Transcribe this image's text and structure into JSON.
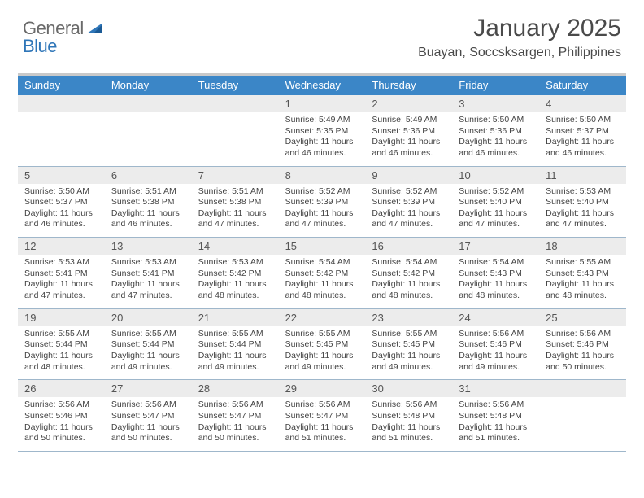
{
  "logo": {
    "word1": "General",
    "word2": "Blue"
  },
  "title": "January 2025",
  "location": "Buayan, Soccsksargen, Philippines",
  "colors": {
    "header_bg": "#3b86c7",
    "header_text": "#ffffff",
    "daynum_bg": "#ececec",
    "week_divider": "#9fb7cb",
    "top_rule": "#c9c9c9",
    "body_text": "#444444",
    "logo_gray": "#6a6a6a",
    "logo_blue": "#2f76b8"
  },
  "day_headers": [
    "Sunday",
    "Monday",
    "Tuesday",
    "Wednesday",
    "Thursday",
    "Friday",
    "Saturday"
  ],
  "weeks": [
    [
      null,
      null,
      null,
      {
        "n": "1",
        "sunrise": "5:49 AM",
        "sunset": "5:35 PM",
        "daylight": "11 hours and 46 minutes."
      },
      {
        "n": "2",
        "sunrise": "5:49 AM",
        "sunset": "5:36 PM",
        "daylight": "11 hours and 46 minutes."
      },
      {
        "n": "3",
        "sunrise": "5:50 AM",
        "sunset": "5:36 PM",
        "daylight": "11 hours and 46 minutes."
      },
      {
        "n": "4",
        "sunrise": "5:50 AM",
        "sunset": "5:37 PM",
        "daylight": "11 hours and 46 minutes."
      }
    ],
    [
      {
        "n": "5",
        "sunrise": "5:50 AM",
        "sunset": "5:37 PM",
        "daylight": "11 hours and 46 minutes."
      },
      {
        "n": "6",
        "sunrise": "5:51 AM",
        "sunset": "5:38 PM",
        "daylight": "11 hours and 46 minutes."
      },
      {
        "n": "7",
        "sunrise": "5:51 AM",
        "sunset": "5:38 PM",
        "daylight": "11 hours and 47 minutes."
      },
      {
        "n": "8",
        "sunrise": "5:52 AM",
        "sunset": "5:39 PM",
        "daylight": "11 hours and 47 minutes."
      },
      {
        "n": "9",
        "sunrise": "5:52 AM",
        "sunset": "5:39 PM",
        "daylight": "11 hours and 47 minutes."
      },
      {
        "n": "10",
        "sunrise": "5:52 AM",
        "sunset": "5:40 PM",
        "daylight": "11 hours and 47 minutes."
      },
      {
        "n": "11",
        "sunrise": "5:53 AM",
        "sunset": "5:40 PM",
        "daylight": "11 hours and 47 minutes."
      }
    ],
    [
      {
        "n": "12",
        "sunrise": "5:53 AM",
        "sunset": "5:41 PM",
        "daylight": "11 hours and 47 minutes."
      },
      {
        "n": "13",
        "sunrise": "5:53 AM",
        "sunset": "5:41 PM",
        "daylight": "11 hours and 47 minutes."
      },
      {
        "n": "14",
        "sunrise": "5:53 AM",
        "sunset": "5:42 PM",
        "daylight": "11 hours and 48 minutes."
      },
      {
        "n": "15",
        "sunrise": "5:54 AM",
        "sunset": "5:42 PM",
        "daylight": "11 hours and 48 minutes."
      },
      {
        "n": "16",
        "sunrise": "5:54 AM",
        "sunset": "5:42 PM",
        "daylight": "11 hours and 48 minutes."
      },
      {
        "n": "17",
        "sunrise": "5:54 AM",
        "sunset": "5:43 PM",
        "daylight": "11 hours and 48 minutes."
      },
      {
        "n": "18",
        "sunrise": "5:55 AM",
        "sunset": "5:43 PM",
        "daylight": "11 hours and 48 minutes."
      }
    ],
    [
      {
        "n": "19",
        "sunrise": "5:55 AM",
        "sunset": "5:44 PM",
        "daylight": "11 hours and 48 minutes."
      },
      {
        "n": "20",
        "sunrise": "5:55 AM",
        "sunset": "5:44 PM",
        "daylight": "11 hours and 49 minutes."
      },
      {
        "n": "21",
        "sunrise": "5:55 AM",
        "sunset": "5:44 PM",
        "daylight": "11 hours and 49 minutes."
      },
      {
        "n": "22",
        "sunrise": "5:55 AM",
        "sunset": "5:45 PM",
        "daylight": "11 hours and 49 minutes."
      },
      {
        "n": "23",
        "sunrise": "5:55 AM",
        "sunset": "5:45 PM",
        "daylight": "11 hours and 49 minutes."
      },
      {
        "n": "24",
        "sunrise": "5:56 AM",
        "sunset": "5:46 PM",
        "daylight": "11 hours and 49 minutes."
      },
      {
        "n": "25",
        "sunrise": "5:56 AM",
        "sunset": "5:46 PM",
        "daylight": "11 hours and 50 minutes."
      }
    ],
    [
      {
        "n": "26",
        "sunrise": "5:56 AM",
        "sunset": "5:46 PM",
        "daylight": "11 hours and 50 minutes."
      },
      {
        "n": "27",
        "sunrise": "5:56 AM",
        "sunset": "5:47 PM",
        "daylight": "11 hours and 50 minutes."
      },
      {
        "n": "28",
        "sunrise": "5:56 AM",
        "sunset": "5:47 PM",
        "daylight": "11 hours and 50 minutes."
      },
      {
        "n": "29",
        "sunrise": "5:56 AM",
        "sunset": "5:47 PM",
        "daylight": "11 hours and 51 minutes."
      },
      {
        "n": "30",
        "sunrise": "5:56 AM",
        "sunset": "5:48 PM",
        "daylight": "11 hours and 51 minutes."
      },
      {
        "n": "31",
        "sunrise": "5:56 AM",
        "sunset": "5:48 PM",
        "daylight": "11 hours and 51 minutes."
      },
      null
    ]
  ],
  "labels": {
    "sunrise": "Sunrise:",
    "sunset": "Sunset:",
    "daylight": "Daylight:"
  }
}
